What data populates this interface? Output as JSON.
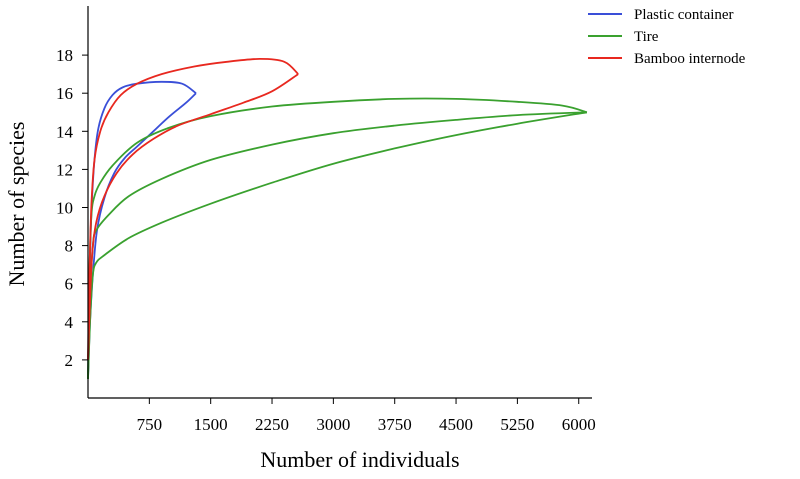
{
  "chart_data": {
    "type": "line",
    "title": "",
    "xlabel": "Number of individuals",
    "ylabel": "Number of species",
    "xlim": [
      0,
      6150
    ],
    "ylim": [
      0,
      20
    ],
    "x_ticks": [
      750,
      1500,
      2250,
      3000,
      3750,
      4500,
      5250,
      6000
    ],
    "y_ticks": [
      2,
      4,
      6,
      8,
      10,
      12,
      14,
      16,
      18
    ],
    "grid": false,
    "legend_position": "top-right",
    "series": [
      {
        "name": "Plastic container",
        "color": "#3a4fd8",
        "lower": [
          [
            0,
            1
          ],
          [
            25,
            4
          ],
          [
            60,
            6.5
          ],
          [
            110,
            8.8
          ],
          [
            200,
            10.5
          ],
          [
            320,
            11.8
          ],
          [
            450,
            12.6
          ],
          [
            600,
            13.2
          ],
          [
            800,
            14
          ],
          [
            1000,
            14.8
          ],
          [
            1200,
            15.5
          ],
          [
            1320,
            16
          ]
        ],
        "upper": [
          [
            0,
            1
          ],
          [
            15,
            5
          ],
          [
            35,
            9
          ],
          [
            70,
            12
          ],
          [
            120,
            14
          ],
          [
            200,
            15.2
          ],
          [
            300,
            15.9
          ],
          [
            420,
            16.3
          ],
          [
            600,
            16.5
          ],
          [
            900,
            16.6
          ],
          [
            1150,
            16.5
          ],
          [
            1320,
            16
          ]
        ]
      },
      {
        "name": "Tire",
        "color": "#3aa12f",
        "lower": [
          [
            0,
            1
          ],
          [
            30,
            4.5
          ],
          [
            60,
            6.5
          ],
          [
            100,
            7.1
          ],
          [
            200,
            7.5
          ],
          [
            500,
            8.4
          ],
          [
            900,
            9.2
          ],
          [
            1500,
            10.2
          ],
          [
            2250,
            11.3
          ],
          [
            3000,
            12.3
          ],
          [
            3750,
            13.1
          ],
          [
            4500,
            13.8
          ],
          [
            5250,
            14.4
          ],
          [
            6100,
            15
          ]
        ],
        "upper": [
          [
            0,
            1
          ],
          [
            20,
            5
          ],
          [
            60,
            8
          ],
          [
            100,
            8.8
          ],
          [
            250,
            9.6
          ],
          [
            500,
            10.6
          ],
          [
            900,
            11.5
          ],
          [
            1500,
            12.5
          ],
          [
            2250,
            13.3
          ],
          [
            3000,
            13.9
          ],
          [
            3750,
            14.3
          ],
          [
            4500,
            14.6
          ],
          [
            5250,
            14.85
          ],
          [
            6100,
            15
          ]
        ],
        "outer": [
          [
            0,
            1
          ],
          [
            15,
            6
          ],
          [
            40,
            9.5
          ],
          [
            80,
            10.6
          ],
          [
            150,
            11.3
          ],
          [
            300,
            12.2
          ],
          [
            600,
            13.4
          ],
          [
            1000,
            14.2
          ],
          [
            1500,
            14.8
          ],
          [
            2250,
            15.3
          ],
          [
            3000,
            15.55
          ],
          [
            3750,
            15.7
          ],
          [
            4500,
            15.7
          ],
          [
            5250,
            15.55
          ],
          [
            5800,
            15.35
          ],
          [
            6100,
            15
          ]
        ]
      },
      {
        "name": "Bamboo internode",
        "color": "#e8281f",
        "lower": [
          [
            0,
            2
          ],
          [
            20,
            4.5
          ],
          [
            50,
            7.5
          ],
          [
            100,
            9.2
          ],
          [
            200,
            10.6
          ],
          [
            350,
            11.8
          ],
          [
            550,
            12.8
          ],
          [
            800,
            13.6
          ],
          [
            1100,
            14.3
          ],
          [
            1500,
            14.9
          ],
          [
            1900,
            15.5
          ],
          [
            2250,
            16.1
          ],
          [
            2570,
            17
          ]
        ],
        "upper": [
          [
            0,
            2
          ],
          [
            15,
            6
          ],
          [
            40,
            10
          ],
          [
            80,
            12.5
          ],
          [
            150,
            14
          ],
          [
            250,
            15
          ],
          [
            400,
            15.9
          ],
          [
            600,
            16.5
          ],
          [
            900,
            17
          ],
          [
            1300,
            17.4
          ],
          [
            1700,
            17.65
          ],
          [
            2100,
            17.8
          ],
          [
            2400,
            17.65
          ],
          [
            2570,
            17
          ]
        ]
      }
    ]
  }
}
